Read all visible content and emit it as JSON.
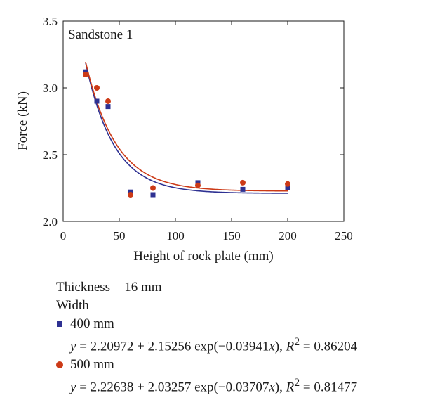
{
  "chart_data": {
    "type": "scatter",
    "panel_label": "Sandstone 1",
    "xlabel": "Height of rock plate (mm)",
    "ylabel": "Force (kN)",
    "xlim": [
      0,
      250
    ],
    "ylim": [
      2.0,
      3.5
    ],
    "xticks": [
      "0",
      "50",
      "100",
      "150",
      "200",
      "250"
    ],
    "yticks": [
      "2.0",
      "2.5",
      "3.0",
      "3.5"
    ],
    "xtick_values": [
      0,
      50,
      100,
      150,
      200,
      250
    ],
    "ytick_values": [
      2.0,
      2.5,
      3.0,
      3.5
    ],
    "grid": false,
    "series": [
      {
        "name": "400 mm",
        "marker": "square",
        "color": "#2e3192",
        "x": [
          20,
          30,
          40,
          60,
          80,
          120,
          160,
          200
        ],
        "y": [
          3.12,
          2.9,
          2.86,
          2.22,
          2.2,
          2.29,
          2.24,
          2.25
        ],
        "fit": {
          "a": 2.20972,
          "b": 2.15256,
          "c": -0.03941,
          "r2": 0.86204,
          "x_range": [
            20,
            200
          ]
        }
      },
      {
        "name": "500 mm",
        "marker": "circle",
        "color": "#cc3a17",
        "x": [
          20,
          30,
          40,
          60,
          80,
          120,
          160,
          200
        ],
        "y": [
          3.1,
          3.0,
          2.9,
          2.2,
          2.25,
          2.27,
          2.29,
          2.28
        ],
        "fit": {
          "a": 2.22638,
          "b": 2.03257,
          "c": -0.03707,
          "r2": 0.81477,
          "x_range": [
            20,
            200
          ]
        }
      }
    ]
  },
  "legend": {
    "thickness": "Thickness = 16 mm",
    "width_title": "Width",
    "s1_name": "400 mm",
    "s1_eq_y": "y",
    "s1_eq_mid": " = 2.20972 + 2.15256 exp(−0.03941",
    "s1_eq_x": "x",
    "s1_eq_post": "), ",
    "s1_eq_r": "R",
    "s1_eq_sup": "2",
    "s1_eq_val": " = 0.86204",
    "s2_name": "500 mm",
    "s2_eq_y": "y",
    "s2_eq_mid": " = 2.22638 + 2.03257 exp(−0.03707",
    "s2_eq_x": "x",
    "s2_eq_post": "), ",
    "s2_eq_r": "R",
    "s2_eq_sup": "2",
    "s2_eq_val": " = 0.81477"
  }
}
